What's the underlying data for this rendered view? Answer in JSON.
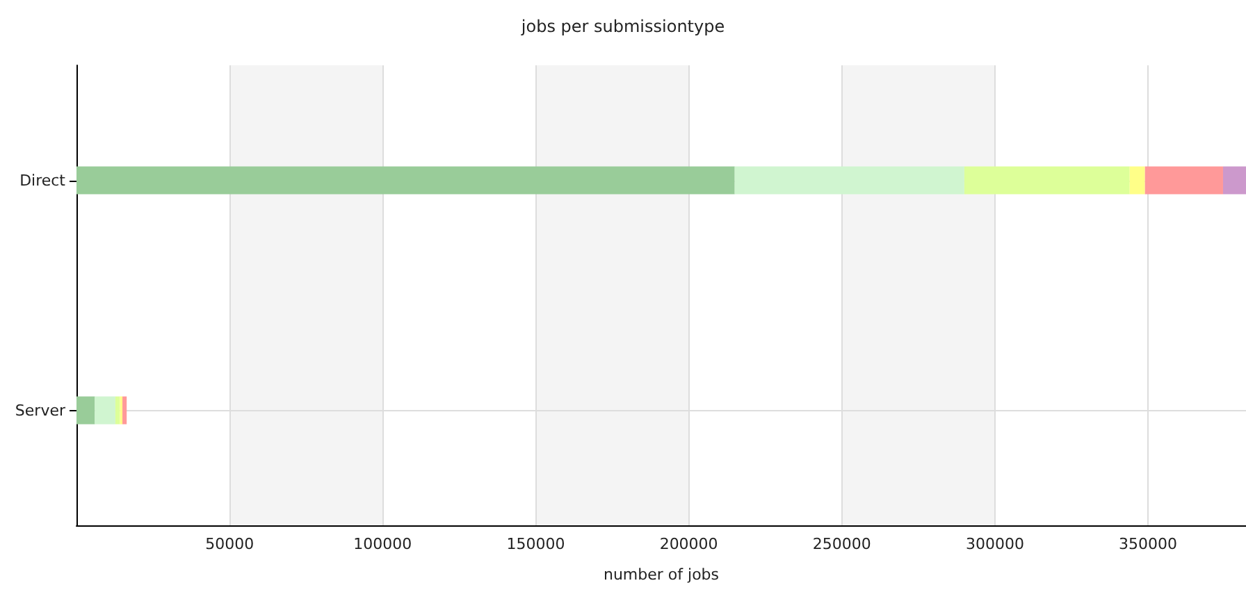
{
  "chart_data": {
    "type": "bar",
    "title": "jobs per submissiontype",
    "xlabel": "number of jobs",
    "orientation": "horizontal",
    "stacked": true,
    "categories": [
      "Direct",
      "Server"
    ],
    "series": [
      {
        "color": "#99cc99",
        "values": [
          215000,
          6000
        ]
      },
      {
        "color": "#d0f5d0",
        "values": [
          75000,
          6700
        ]
      },
      {
        "color": "#ddff99",
        "values": [
          54000,
          1500
        ]
      },
      {
        "color": "#ffff88",
        "values": [
          5000,
          800
        ]
      },
      {
        "color": "#ff9999",
        "values": [
          25500,
          1400
        ]
      },
      {
        "color": "#cc99cc",
        "values": [
          7500,
          null
        ]
      }
    ],
    "xlim": [
      0,
      382000
    ],
    "xticks": [
      50000,
      100000,
      150000,
      200000,
      250000,
      300000,
      350000
    ],
    "grid": true
  }
}
